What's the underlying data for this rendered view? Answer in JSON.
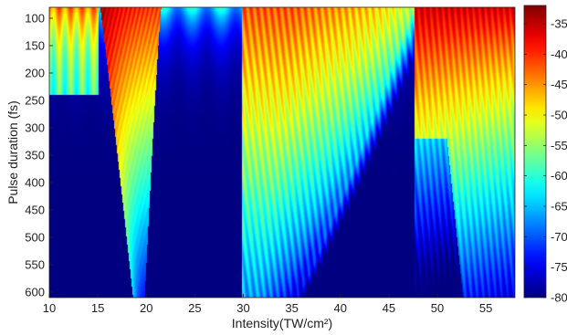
{
  "chart_data": {
    "type": "heatmap",
    "title": "",
    "xlabel": "Intensity(TW/cm²)",
    "ylabel": "Pulse duration (fs)",
    "xlim": [
      10,
      58
    ],
    "ylim": [
      80,
      610
    ],
    "y_reversed": true,
    "x_ticks": [
      10,
      15,
      20,
      25,
      30,
      35,
      40,
      45,
      50,
      55
    ],
    "y_ticks": [
      100,
      150,
      200,
      250,
      300,
      350,
      400,
      450,
      500,
      550,
      600
    ],
    "colorbar": {
      "colormap": "jet",
      "min": -80,
      "max": -32,
      "ticks": [
        -35,
        -40,
        -45,
        -50,
        -55,
        -60,
        -65,
        -70,
        -75,
        -80
      ]
    },
    "features": [
      {
        "x": [
          15.2,
          21.5
        ],
        "y_tip": 600,
        "peak_value": -33
      },
      {
        "x": [
          29.8,
          35.5
        ],
        "y_tip": 610,
        "peak_value": -38
      },
      {
        "x": [
          47.6,
          58.0
        ],
        "y_tip": 610,
        "peak_value": -36
      }
    ],
    "grid": false,
    "legend": "colorbar-right"
  }
}
